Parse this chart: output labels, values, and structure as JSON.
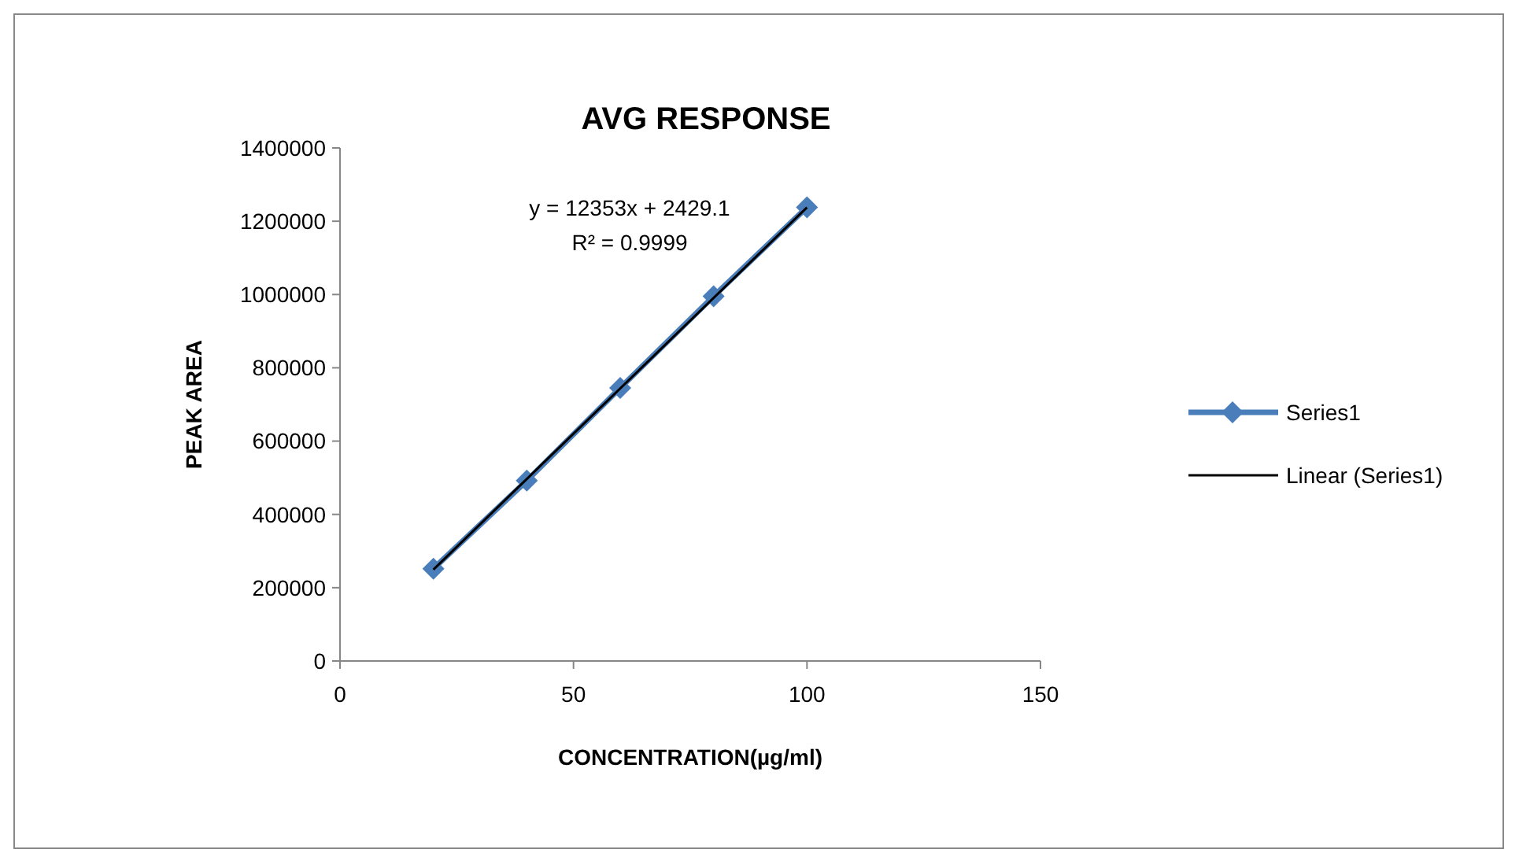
{
  "chart_data": {
    "type": "line",
    "title": "AVG RESPONSE",
    "xlabel": "CONCENTRATION(µg/ml)",
    "ylabel": "PEAK AREA",
    "x": [
      20,
      40,
      60,
      80,
      100
    ],
    "series": [
      {
        "name": "Series1",
        "color": "#4a7ebb",
        "values": [
          252000,
          492000,
          745000,
          995000,
          1238000
        ],
        "marker": "diamond"
      },
      {
        "name": "Linear (Series1)",
        "color": "#000000",
        "type": "line",
        "x": [
          20,
          100
        ],
        "values": [
          249489.1,
          1237729.1
        ],
        "marker": "none"
      }
    ],
    "annotations": [
      "y = 12353x + 2429.1",
      "R² = 0.9999"
    ],
    "xlim": [
      0,
      150
    ],
    "xticks": [
      0,
      50,
      100,
      150
    ],
    "ylim": [
      0,
      1400000
    ],
    "yticks": [
      0,
      200000,
      400000,
      600000,
      800000,
      1000000,
      1200000,
      1400000
    ],
    "grid": false,
    "legend": "right"
  }
}
